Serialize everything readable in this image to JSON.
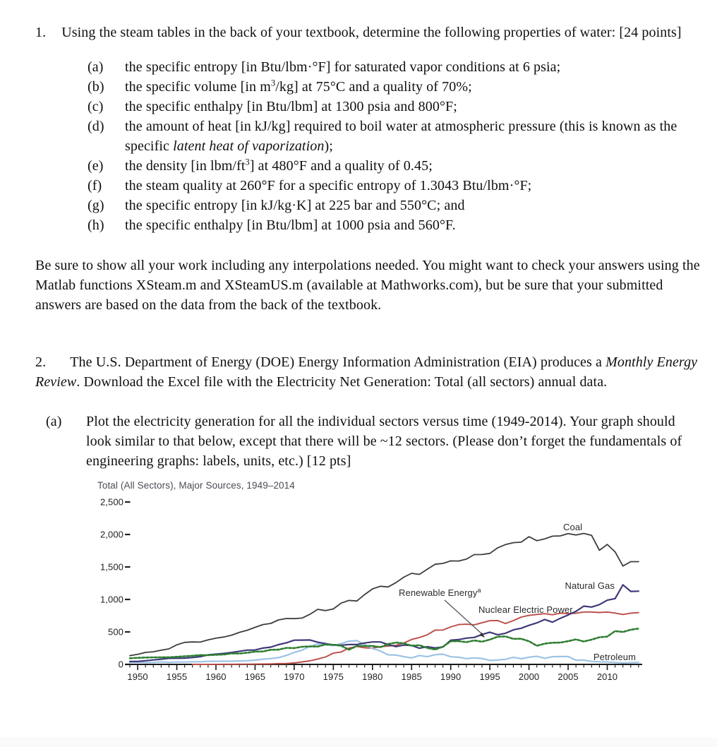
{
  "page": {
    "background": "#ffffff",
    "bottom_strip_color": "#fafafa"
  },
  "doc": {
    "q1": {
      "number": "1.",
      "intro": "Using the steam tables in the back of your textbook, determine the following properties of water: [24 points]",
      "items": [
        {
          "label": "(a)",
          "pre": "the specific entropy [in Btu/lbm·°F] for saturated vapor conditions at 6 psia;"
        },
        {
          "label": "(b)",
          "pre": "the specific volume [in m",
          "sup": "3",
          "post": "/kg] at 75°C and a quality of 70%;"
        },
        {
          "label": "(c)",
          "pre": "the specific enthalpy [in Btu/lbm] at 1300 psia and 800°F;"
        },
        {
          "label": "(d)",
          "pre": "the amount of heat [in kJ/kg] required to boil water at atmospheric pressure (this is known as the specific ",
          "italic": "latent heat of vaporization",
          "post": ");"
        },
        {
          "label": "(e)",
          "pre": "the density [in lbm/ft",
          "sup": "3",
          "post": "] at 480°F and a quality of 0.45;"
        },
        {
          "label": "(f)",
          "pre": "the steam quality at 260°F for a specific entropy of 1.3043 Btu/lbm·°F;"
        },
        {
          "label": "(g)",
          "pre": "the specific entropy [in kJ/kg·K] at 225 bar and 550°C; and"
        },
        {
          "label": "(h)",
          "pre": "the specific enthalpy [in Btu/lbm] at 1000 psia and 560°F."
        }
      ],
      "note": "Be sure to show all your work including any interpolations needed.  You might want to check your answers using the Matlab functions XSteam.m and XSteamUS.m (available at Mathworks.com), but be sure that your submitted answers are based on the data from the back of the textbook."
    },
    "q2": {
      "number": "2.",
      "intro_pre": "The U.S. Department of Energy (DOE) Energy Information Administration (EIA) produces a ",
      "intro_italic": "Monthly Energy Review",
      "intro_post": ". Download the Excel file with the Electricity Net Generation: Total (all sectors) annual data.",
      "part_a": {
        "label": "(a)",
        "text": "Plot the electricity generation for all the individual sectors versus time (1949-2014).  Your graph should look similar to that below, except that there will be ~12 sectors.  (Please don’t forget the fundamentals of engineering graphs: labels, units, etc.) [12 pts]"
      }
    }
  },
  "chart_data": {
    "type": "line",
    "title": "Total (All Sectors), Major Sources, 1949–2014",
    "xlabel": "",
    "ylabel": "",
    "xlim": [
      1949,
      2014
    ],
    "ylim": [
      0,
      2500
    ],
    "grid": false,
    "legend_position": "inline-labels",
    "x": [
      1949,
      1950,
      1951,
      1952,
      1953,
      1954,
      1955,
      1956,
      1957,
      1958,
      1959,
      1960,
      1961,
      1962,
      1963,
      1964,
      1965,
      1966,
      1967,
      1968,
      1969,
      1970,
      1971,
      1972,
      1973,
      1974,
      1975,
      1976,
      1977,
      1978,
      1979,
      1980,
      1981,
      1982,
      1983,
      1984,
      1985,
      1986,
      1987,
      1988,
      1989,
      1990,
      1991,
      1992,
      1993,
      1994,
      1995,
      1996,
      1997,
      1998,
      1999,
      2000,
      2001,
      2002,
      2003,
      2004,
      2005,
      2006,
      2007,
      2008,
      2009,
      2010,
      2011,
      2012,
      2013,
      2014
    ],
    "xticks": [
      1950,
      1955,
      1960,
      1965,
      1970,
      1975,
      1980,
      1985,
      1990,
      1995,
      2000,
      2005,
      2010
    ],
    "yticks": [
      {
        "value": 0,
        "label": "0"
      },
      {
        "value": 500,
        "label": "500"
      },
      {
        "value": 1000,
        "label": "1,000"
      },
      {
        "value": 1500,
        "label": "1,500"
      },
      {
        "value": 2000,
        "label": "2,000"
      },
      {
        "value": 2500,
        "label": "2,500"
      }
    ],
    "series": [
      {
        "name": "Coal",
        "color": "#3d3d3d",
        "width": 1.8,
        "dash": "",
        "values": [
          135,
          155,
          185,
          195,
          219,
          239,
          301,
          339,
          346,
          344,
          378,
          403,
          422,
          450,
          494,
          526,
          571,
          613,
          630,
          685,
          706,
          704,
          713,
          771,
          848,
          828,
          853,
          944,
          985,
          976,
          1075,
          1162,
          1203,
          1192,
          1259,
          1342,
          1402,
          1386,
          1464,
          1541,
          1554,
          1594,
          1591,
          1621,
          1690,
          1691,
          1709,
          1795,
          1845,
          1874,
          1881,
          1966,
          1904,
          1933,
          1974,
          1978,
          2013,
          1991,
          2016,
          1986,
          1756,
          1847,
          1733,
          1514,
          1581,
          1582
        ]
      },
      {
        "name": "Natural Gas",
        "color": "#3e3a79",
        "width": 2.2,
        "dash": "",
        "values": [
          45,
          45,
          57,
          68,
          80,
          94,
          95,
          97,
          105,
          120,
          147,
          158,
          169,
          184,
          202,
          220,
          222,
          251,
          265,
          304,
          333,
          373,
          374,
          376,
          341,
          320,
          300,
          295,
          306,
          305,
          329,
          346,
          346,
          305,
          274,
          297,
          292,
          249,
          273,
          253,
          267,
          373,
          381,
          404,
          415,
          460,
          496,
          455,
          479,
          531,
          556,
          601,
          639,
          691,
          650,
          710,
          761,
          816,
          897,
          883,
          921,
          988,
          1013,
          1225,
          1124,
          1127
        ]
      },
      {
        "name": "Nuclear Electric Power",
        "color": "#bb4d47",
        "width": 1.9,
        "dash": "",
        "values": [
          null,
          null,
          null,
          null,
          null,
          null,
          null,
          null,
          0,
          0,
          0,
          1,
          2,
          2,
          3,
          3,
          4,
          6,
          8,
          13,
          14,
          22,
          38,
          54,
          83,
          114,
          173,
          191,
          251,
          276,
          255,
          251,
          273,
          283,
          294,
          328,
          384,
          414,
          455,
          527,
          529,
          577,
          613,
          619,
          610,
          640,
          673,
          675,
          629,
          674,
          728,
          754,
          769,
          780,
          764,
          789,
          782,
          787,
          806,
          806,
          799,
          807,
          790,
          769,
          789,
          797
        ]
      },
      {
        "name": "Renewable Energy",
        "sup": "a",
        "color": "#2f7e32",
        "width": 2.6,
        "dash": "3.4 2.4",
        "values": [
          95,
          101,
          105,
          109,
          109,
          110,
          116,
          125,
          133,
          144,
          141,
          148,
          152,
          169,
          167,
          179,
          197,
          199,
          225,
          227,
          254,
          251,
          272,
          277,
          275,
          306,
          303,
          287,
          226,
          285,
          283,
          285,
          264,
          313,
          336,
          324,
          287,
          296,
          253,
          228,
          273,
          357,
          358,
          342,
          369,
          350,
          382,
          426,
          430,
          393,
          395,
          356,
          287,
          320,
          334,
          336,
          358,
          385,
          352,
          381,
          417,
          428,
          513,
          499,
          534,
          551
        ]
      },
      {
        "name": "Petroleum",
        "color": "#9dc3e6",
        "width": 2.2,
        "dash": "",
        "values": [
          30,
          34,
          29,
          30,
          38,
          32,
          37,
          36,
          40,
          40,
          47,
          48,
          49,
          49,
          53,
          57,
          65,
          79,
          89,
          104,
          138,
          184,
          220,
          274,
          314,
          301,
          289,
          320,
          358,
          365,
          304,
          246,
          206,
          147,
          144,
          120,
          100,
          137,
          118,
          149,
          158,
          117,
          111,
          89,
          100,
          91,
          61,
          67,
          78,
          110,
          87,
          111,
          125,
          95,
          119,
          121,
          122,
          64,
          66,
          46,
          39,
          37,
          30,
          23,
          27,
          30
        ]
      }
    ]
  }
}
